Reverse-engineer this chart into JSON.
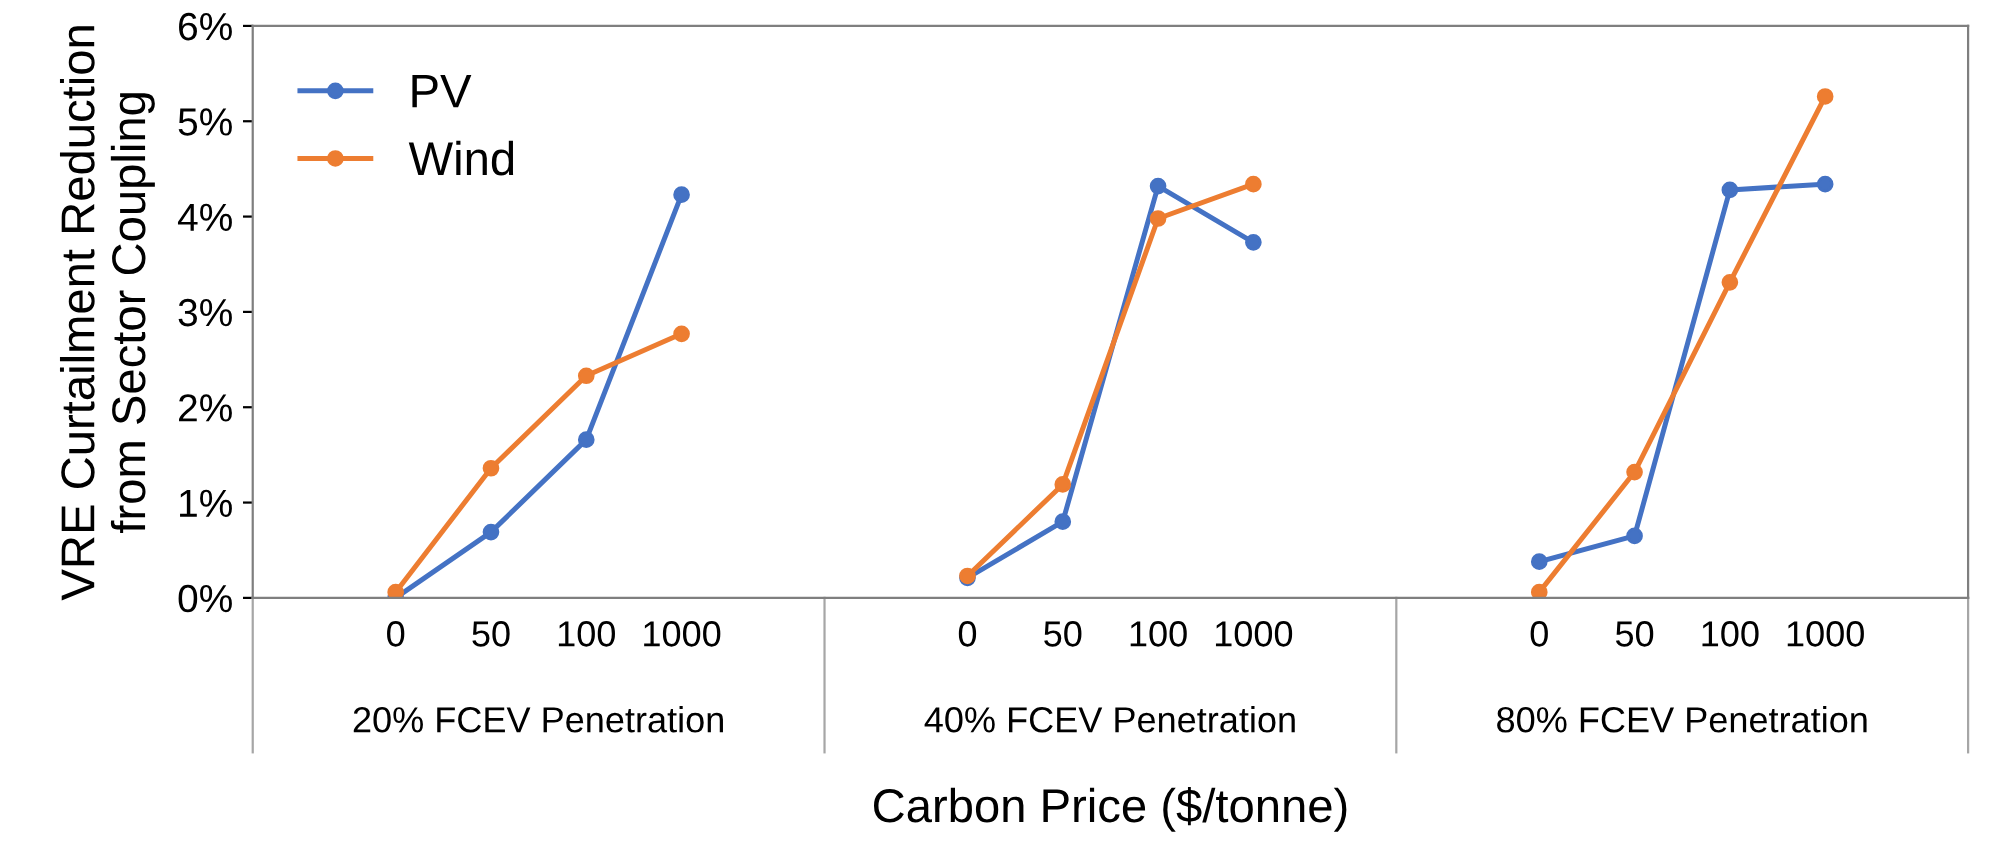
{
  "chart_data": {
    "type": "line",
    "xlabel": "Carbon Price ($/tonne)",
    "ylabel": "VRE Curtailment Reduction\nfrom Sector Coupling",
    "categories": [
      null,
      "0",
      "50",
      "100",
      "1000",
      null,
      null,
      "0",
      "50",
      "100",
      "1000",
      null,
      null,
      "0",
      "50",
      "100",
      "1000",
      null
    ],
    "series": [
      {
        "name": "PV",
        "color": "#4472c4",
        "values": [
          null,
          0.0,
          0.69,
          1.66,
          4.23,
          null,
          null,
          0.21,
          0.8,
          4.32,
          3.73,
          null,
          null,
          0.38,
          0.65,
          4.28,
          4.34,
          null
        ]
      },
      {
        "name": "Wind",
        "color": "#ed7d31",
        "values": [
          null,
          0.06,
          1.36,
          2.33,
          2.77,
          null,
          null,
          0.23,
          1.19,
          3.98,
          4.34,
          null,
          null,
          0.06,
          1.32,
          3.31,
          5.26,
          null
        ]
      }
    ],
    "ylim": [
      0,
      6
    ],
    "yticks": [
      {
        "value": 0,
        "label": "0%"
      },
      {
        "value": 1,
        "label": "1%"
      },
      {
        "value": 2,
        "label": "2%"
      },
      {
        "value": 3,
        "label": "3%"
      },
      {
        "value": 4,
        "label": "4%"
      },
      {
        "value": 5,
        "label": "5%"
      },
      {
        "value": 6,
        "label": "6%"
      }
    ],
    "annotations": [
      "20% FCEV Penetration",
      "40% FCEV Penetration",
      "80% FCEV Penetration"
    ],
    "legend": "top left",
    "marker": "circle",
    "line_style": "solid",
    "grid": false
  }
}
